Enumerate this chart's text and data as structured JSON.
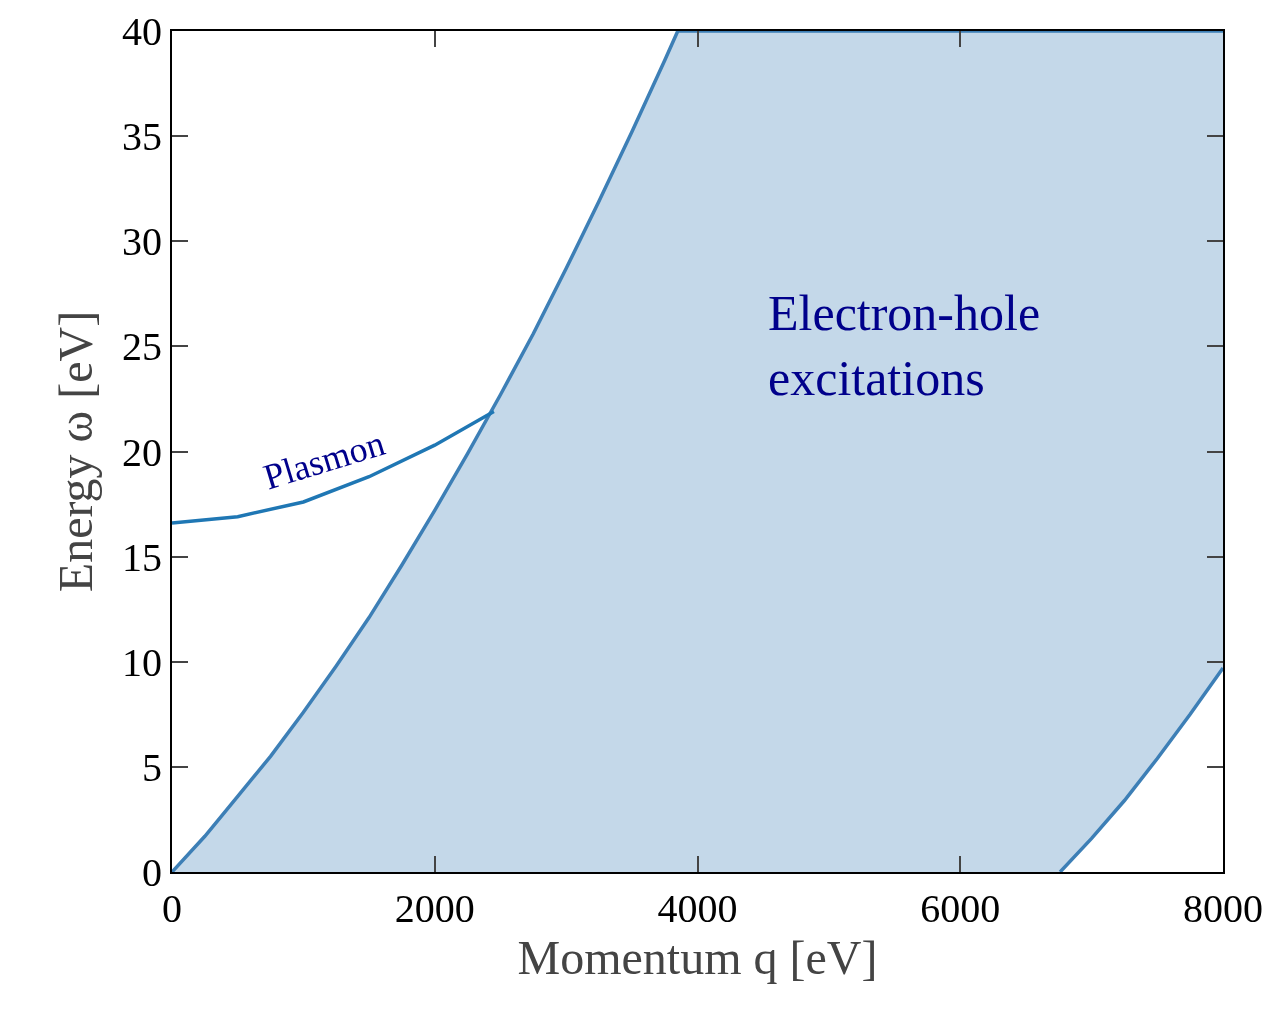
{
  "chart_data": {
    "type": "line",
    "xlabel": "Momentum q [eV]",
    "ylabel": "Energy ω [eV]",
    "xlim": [
      0,
      8000
    ],
    "ylim": [
      0,
      40
    ],
    "xticks": [
      0,
      2000,
      4000,
      6000,
      8000
    ],
    "yticks": [
      0,
      5,
      10,
      15,
      20,
      25,
      30,
      35,
      40
    ],
    "grid": false,
    "marker": "none",
    "line_style": "solid",
    "series": [
      {
        "color": "#3d7fb6",
        "x": [
          0,
          250,
          500,
          750,
          1000,
          1250,
          1500,
          1750,
          2000,
          2250,
          2500,
          2750,
          3000,
          3250,
          3500,
          3750,
          3850,
          6760,
          7000,
          7250,
          7500,
          7750,
          8000
        ],
        "values": [
          0,
          1.7,
          3.6,
          5.5,
          7.6,
          9.8,
          12.1,
          14.6,
          17.2,
          19.9,
          22.7,
          25.6,
          28.7,
          31.9,
          35.2,
          38.6,
          40,
          40,
          40,
          40,
          40,
          40,
          40
        ],
        "upper": [
          0,
          1.7,
          3.6,
          5.5,
          7.6,
          9.8,
          12.1,
          14.6,
          17.2,
          19.9,
          22.7,
          25.6,
          28.7,
          31.9,
          35.2,
          38.6,
          40,
          40,
          40,
          40,
          40,
          40,
          40
        ],
        "lower": [
          0,
          0,
          0,
          0,
          0,
          0,
          0,
          0,
          0,
          0,
          0,
          0,
          0,
          0,
          0,
          0,
          0,
          0,
          1.6,
          3.4,
          5.4,
          7.5,
          9.7
        ]
      },
      {
        "color": "#3d7fb6",
        "x": [
          6760,
          7000,
          7250,
          7500,
          7750,
          8000
        ],
        "values": [
          0,
          1.6,
          3.4,
          5.4,
          7.5,
          9.7
        ]
      },
      {
        "color": "#1f77b4",
        "x": [
          0,
          500,
          1000,
          1500,
          2000,
          2450
        ],
        "values": [
          16.6,
          16.9,
          17.6,
          18.8,
          20.3,
          21.9
        ]
      }
    ],
    "annotations": [
      "Plasmon",
      "Electron-hole\nexcitations"
    ]
  }
}
